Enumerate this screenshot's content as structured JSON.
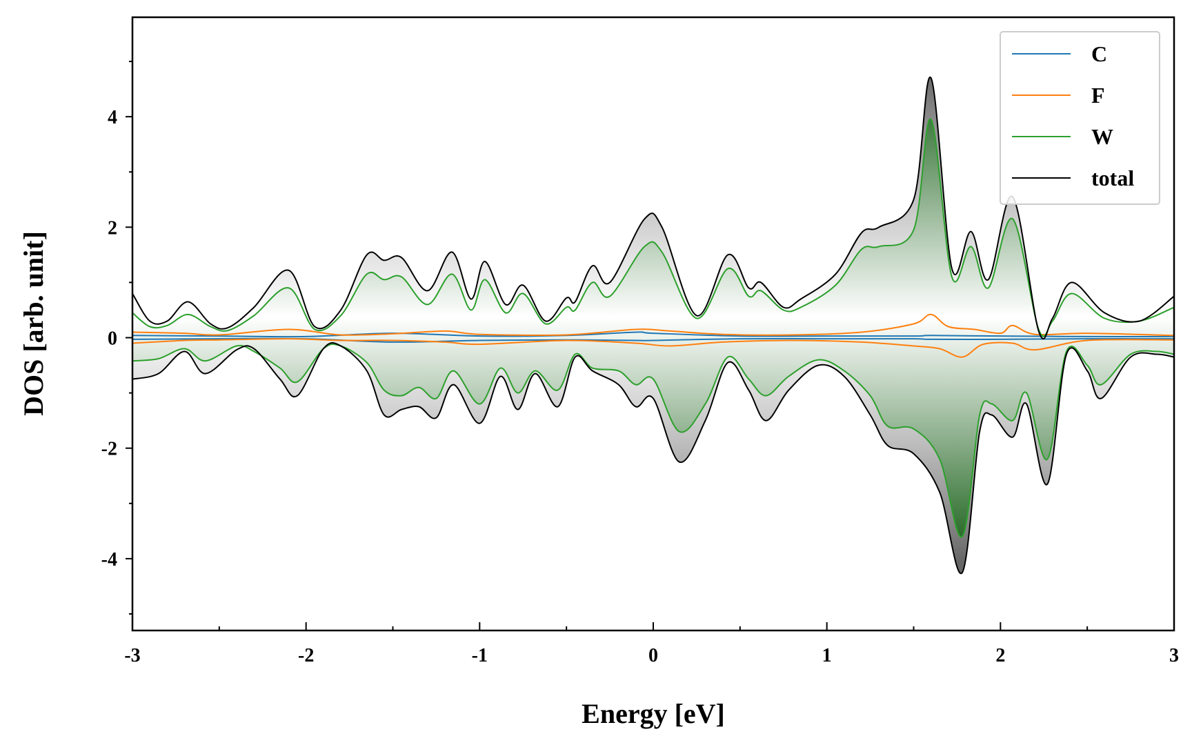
{
  "chart_data": {
    "type": "area",
    "title": "",
    "xlabel": "Energy [eV]",
    "ylabel": "DOS [arb. unit]",
    "xlim": [
      -3,
      3
    ],
    "ylim": [
      -5.3,
      5.8
    ],
    "x_ticks": [
      -3,
      -2,
      -1,
      0,
      1,
      2,
      3
    ],
    "x_tick_labels": [
      "-3",
      "-2",
      "-1",
      "0",
      "1",
      "2",
      "3"
    ],
    "y_ticks": [
      -4,
      -2,
      0,
      2,
      4
    ],
    "y_tick_labels": [
      "-4",
      "-2",
      "0",
      "2",
      "4"
    ],
    "grid": false,
    "legend_position": "top-right",
    "colors": {
      "C": "#1f77b4",
      "F": "#ff7f0e",
      "W": "#2ca02c",
      "total": "#000000",
      "w_fill": "#1e6b1e",
      "total_fill": "#808080"
    },
    "series": [
      {
        "name": "C",
        "spin_up": {
          "x": [
            -3.0,
            -2.5,
            -2.0,
            -1.5,
            -1.0,
            -0.5,
            -0.1,
            0.0,
            0.5,
            1.0,
            1.5,
            1.6,
            2.0,
            2.5,
            3.0
          ],
          "y": [
            0.04,
            0.03,
            0.02,
            0.08,
            0.03,
            0.04,
            0.1,
            0.08,
            0.03,
            0.03,
            0.03,
            0.04,
            0.03,
            0.02,
            0.02
          ]
        },
        "spin_down": {
          "x": [
            -3.0,
            -2.5,
            -2.0,
            -1.5,
            -1.0,
            -0.5,
            -0.1,
            0.0,
            0.5,
            1.0,
            1.5,
            1.6,
            2.0,
            2.5,
            3.0
          ],
          "y": [
            -0.03,
            -0.02,
            -0.02,
            -0.08,
            -0.05,
            -0.04,
            -0.05,
            -0.05,
            -0.02,
            -0.02,
            -0.02,
            -0.03,
            -0.03,
            -0.02,
            -0.02
          ]
        }
      },
      {
        "name": "F",
        "spin_up": {
          "x": [
            -3.0,
            -2.7,
            -2.5,
            -2.1,
            -1.8,
            -1.5,
            -1.2,
            -1.0,
            -0.5,
            -0.1,
            0.1,
            0.4,
            0.8,
            1.2,
            1.5,
            1.6,
            1.7,
            1.85,
            2.0,
            2.07,
            2.2,
            2.5,
            3.0
          ],
          "y": [
            0.1,
            0.08,
            0.05,
            0.15,
            0.05,
            0.07,
            0.12,
            0.06,
            0.05,
            0.15,
            0.12,
            0.06,
            0.05,
            0.1,
            0.25,
            0.42,
            0.2,
            0.15,
            0.08,
            0.22,
            0.06,
            0.08,
            0.04
          ]
        },
        "spin_down": {
          "x": [
            -3.0,
            -2.7,
            -2.5,
            -2.1,
            -1.8,
            -1.5,
            -1.2,
            -1.0,
            -0.5,
            -0.1,
            0.1,
            0.4,
            0.8,
            1.2,
            1.5,
            1.65,
            1.78,
            1.9,
            2.07,
            2.2,
            2.5,
            3.0
          ],
          "y": [
            -0.1,
            -0.05,
            -0.04,
            -0.02,
            -0.05,
            -0.05,
            -0.08,
            -0.12,
            -0.05,
            -0.1,
            -0.15,
            -0.08,
            -0.05,
            -0.08,
            -0.15,
            -0.2,
            -0.35,
            -0.12,
            -0.1,
            -0.22,
            -0.05,
            -0.04
          ]
        }
      },
      {
        "name": "W",
        "spin_up": {
          "x": [
            -3.0,
            -2.9,
            -2.8,
            -2.68,
            -2.55,
            -2.45,
            -2.3,
            -2.1,
            -1.95,
            -1.8,
            -1.65,
            -1.55,
            -1.45,
            -1.3,
            -1.16,
            -1.05,
            -0.97,
            -0.85,
            -0.75,
            -0.62,
            -0.5,
            -0.45,
            -0.35,
            -0.25,
            -0.05,
            0.05,
            0.25,
            0.43,
            0.55,
            0.62,
            0.75,
            0.85,
            1.05,
            1.2,
            1.3,
            1.5,
            1.6,
            1.72,
            1.83,
            1.93,
            2.07,
            2.22,
            2.3,
            2.41,
            2.6,
            2.8,
            3.0
          ],
          "y": [
            0.45,
            0.2,
            0.22,
            0.42,
            0.2,
            0.13,
            0.4,
            0.9,
            0.15,
            0.4,
            1.15,
            1.05,
            1.1,
            0.6,
            1.15,
            0.5,
            1.05,
            0.45,
            0.8,
            0.25,
            0.55,
            0.5,
            1.0,
            0.75,
            1.65,
            1.55,
            0.35,
            1.25,
            0.75,
            0.85,
            0.5,
            0.55,
            0.95,
            1.6,
            1.65,
            1.95,
            3.95,
            1.1,
            1.65,
            0.9,
            2.15,
            0.15,
            0.3,
            0.8,
            0.35,
            0.3,
            0.55
          ]
        },
        "spin_down": {
          "x": [
            -3.0,
            -2.85,
            -2.7,
            -2.58,
            -2.4,
            -2.3,
            -2.15,
            -2.05,
            -1.9,
            -1.8,
            -1.65,
            -1.55,
            -1.45,
            -1.35,
            -1.25,
            -1.15,
            -1.0,
            -0.88,
            -0.78,
            -0.68,
            -0.55,
            -0.45,
            -0.35,
            -0.2,
            -0.1,
            0.0,
            0.15,
            0.3,
            0.43,
            0.55,
            0.65,
            0.78,
            0.95,
            1.1,
            1.25,
            1.35,
            1.5,
            1.65,
            1.78,
            1.88,
            1.95,
            2.07,
            2.15,
            2.27,
            2.38,
            2.5,
            2.58,
            2.75,
            2.9,
            3.0
          ],
          "y": [
            -0.42,
            -0.38,
            -0.2,
            -0.42,
            -0.15,
            -0.25,
            -0.55,
            -0.8,
            -0.2,
            -0.15,
            -0.45,
            -0.95,
            -1.05,
            -0.9,
            -1.1,
            -0.6,
            -1.2,
            -0.55,
            -1.0,
            -0.6,
            -0.95,
            -0.3,
            -0.55,
            -0.6,
            -0.85,
            -0.75,
            -1.7,
            -1.2,
            -0.35,
            -0.75,
            -1.05,
            -0.7,
            -0.4,
            -0.6,
            -1.05,
            -1.6,
            -1.65,
            -2.2,
            -3.6,
            -1.4,
            -1.2,
            -1.5,
            -1.0,
            -2.2,
            -0.25,
            -0.5,
            -0.85,
            -0.3,
            -0.25,
            -0.3
          ]
        }
      },
      {
        "name": "total",
        "spin_up": {
          "x": [
            -3.0,
            -2.9,
            -2.8,
            -2.68,
            -2.55,
            -2.45,
            -2.3,
            -2.1,
            -1.95,
            -1.8,
            -1.65,
            -1.55,
            -1.45,
            -1.3,
            -1.16,
            -1.05,
            -0.97,
            -0.85,
            -0.75,
            -0.62,
            -0.5,
            -0.45,
            -0.35,
            -0.25,
            -0.05,
            0.05,
            0.25,
            0.43,
            0.55,
            0.62,
            0.75,
            0.85,
            1.05,
            1.2,
            1.3,
            1.5,
            1.6,
            1.72,
            1.83,
            1.93,
            2.07,
            2.22,
            2.3,
            2.41,
            2.6,
            2.8,
            3.0
          ],
          "y": [
            0.8,
            0.3,
            0.3,
            0.65,
            0.25,
            0.18,
            0.55,
            1.22,
            0.2,
            0.5,
            1.5,
            1.4,
            1.45,
            0.85,
            1.55,
            0.7,
            1.38,
            0.6,
            0.95,
            0.3,
            0.72,
            0.65,
            1.3,
            1.0,
            2.15,
            2.0,
            0.4,
            1.5,
            0.9,
            1.0,
            0.55,
            0.7,
            1.15,
            1.9,
            2.0,
            2.5,
            4.7,
            1.25,
            1.92,
            1.05,
            2.55,
            0.12,
            0.35,
            1.0,
            0.45,
            0.3,
            0.75
          ]
        },
        "spin_down": {
          "x": [
            -3.0,
            -2.85,
            -2.7,
            -2.58,
            -2.4,
            -2.3,
            -2.15,
            -2.05,
            -1.9,
            -1.8,
            -1.65,
            -1.55,
            -1.45,
            -1.35,
            -1.25,
            -1.15,
            -1.0,
            -0.88,
            -0.78,
            -0.68,
            -0.55,
            -0.45,
            -0.35,
            -0.2,
            -0.1,
            0.0,
            0.15,
            0.3,
            0.43,
            0.55,
            0.65,
            0.78,
            0.95,
            1.1,
            1.25,
            1.35,
            1.5,
            1.65,
            1.78,
            1.88,
            1.95,
            2.07,
            2.15,
            2.27,
            2.38,
            2.5,
            2.58,
            2.75,
            2.9,
            3.0
          ],
          "y": [
            -0.75,
            -0.65,
            -0.25,
            -0.65,
            -0.22,
            -0.2,
            -0.75,
            -1.05,
            -0.2,
            -0.15,
            -0.6,
            -1.4,
            -1.3,
            -1.25,
            -1.45,
            -0.85,
            -1.55,
            -0.7,
            -1.3,
            -0.65,
            -1.25,
            -0.35,
            -0.6,
            -0.85,
            -1.25,
            -1.1,
            -2.25,
            -1.5,
            -0.45,
            -0.95,
            -1.5,
            -0.95,
            -0.5,
            -0.7,
            -1.4,
            -1.95,
            -2.1,
            -2.8,
            -4.25,
            -1.7,
            -1.4,
            -1.8,
            -1.2,
            -2.65,
            -0.3,
            -0.6,
            -1.1,
            -0.35,
            -0.3,
            -0.35
          ]
        }
      }
    ]
  }
}
